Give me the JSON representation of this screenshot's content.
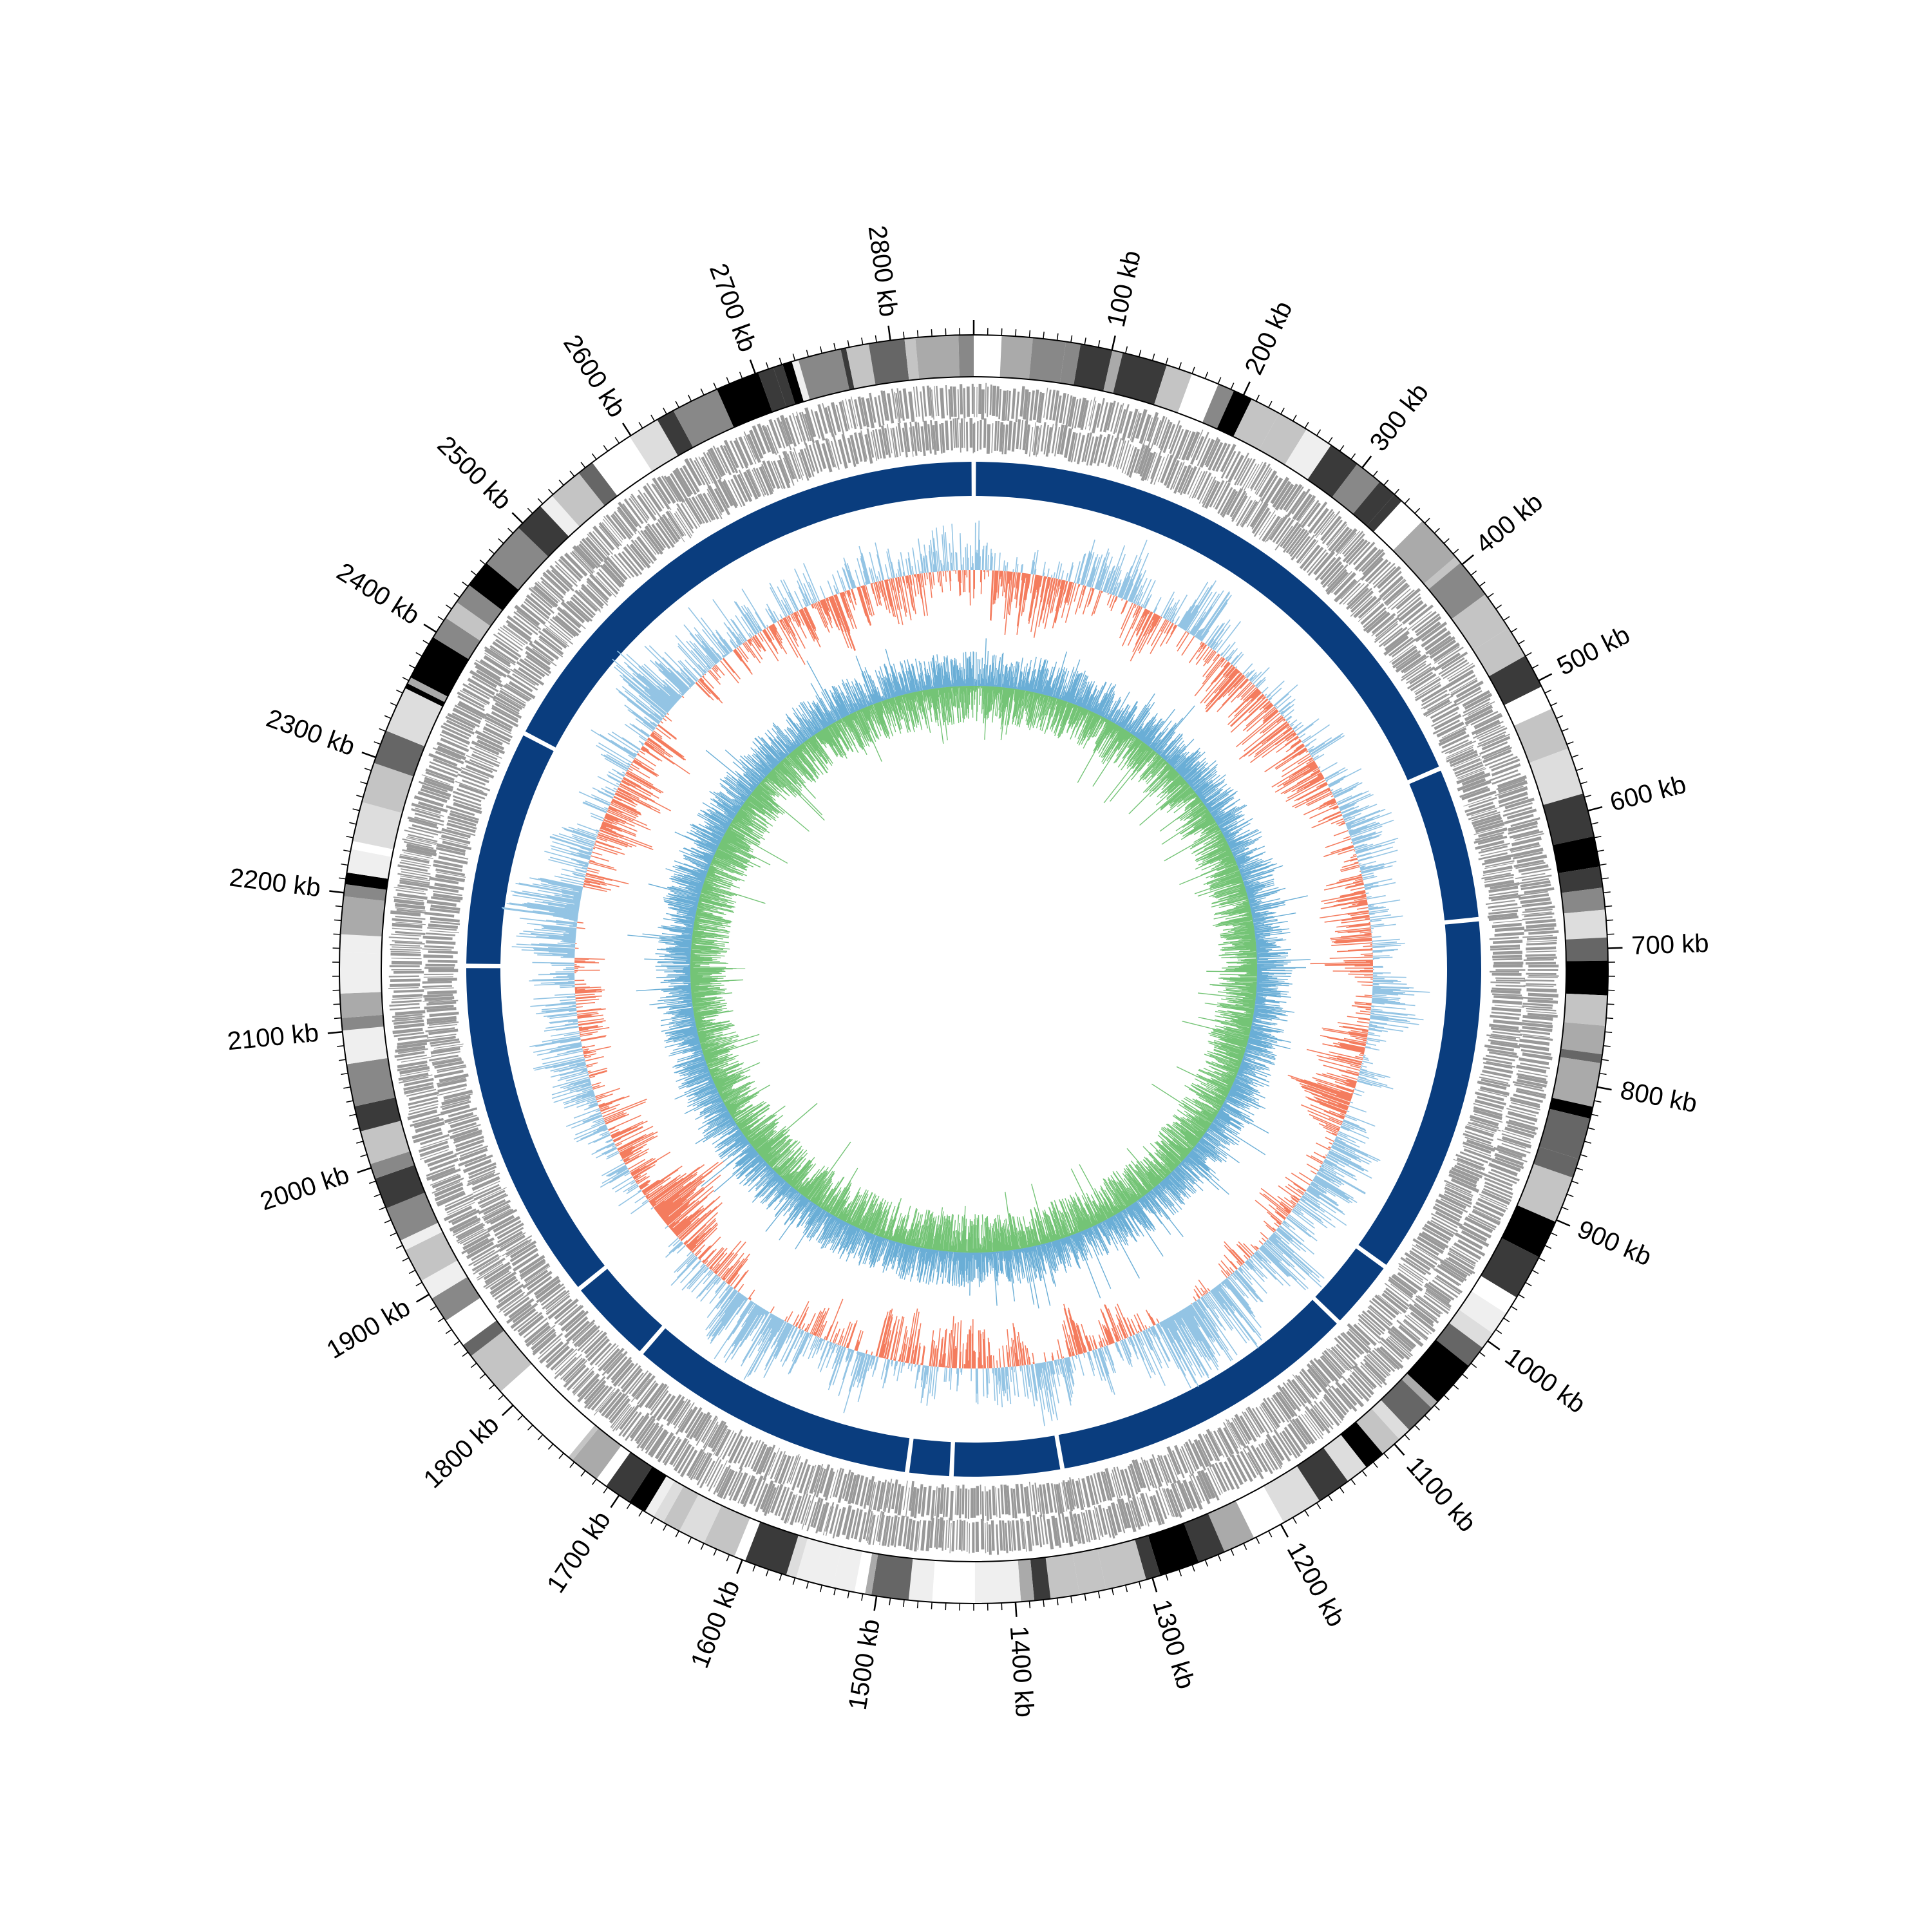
{
  "genome": {
    "length_kb": 2860,
    "start_label": "",
    "tick_labels": [
      "100 kb",
      "200 kb",
      "300 kb",
      "400 kb",
      "500 kb",
      "600 kb",
      "700 kb",
      "800 kb",
      "900 kb",
      "1000 kb",
      "1100 kb",
      "1200 kb",
      "1300 kb",
      "1400 kb",
      "1500 kb",
      "1600 kb",
      "1700 kb",
      "1800 kb",
      "1900 kb",
      "2000 kb",
      "2100 kb",
      "2200 kb",
      "2300 kb",
      "2400 kb",
      "2500 kb",
      "2600 kb",
      "2700 kb",
      "2800 kb"
    ],
    "tick_positions_kb": [
      100,
      200,
      300,
      400,
      500,
      600,
      700,
      800,
      900,
      1000,
      1100,
      1200,
      1300,
      1400,
      1500,
      1600,
      1700,
      1800,
      1900,
      2000,
      2100,
      2200,
      2300,
      2400,
      2500,
      2600,
      2700,
      2800
    ]
  },
  "tracks": [
    {
      "name": "annotation-bands",
      "type": "grayscale-blocks"
    },
    {
      "name": "genes",
      "type": "gene-features",
      "color": "#999999"
    },
    {
      "name": "contigs",
      "type": "segments",
      "color": "#0a3d7e",
      "contigs_kb": [
        [
          0,
          530
        ],
        [
          530,
          670
        ],
        [
          670,
          1000
        ],
        [
          1000,
          1065
        ],
        [
          1065,
          1350
        ],
        [
          1350,
          1450
        ],
        [
          1450,
          1490
        ],
        [
          1490,
          1755
        ],
        [
          1755,
          1835
        ],
        [
          1835,
          2148
        ],
        [
          2148,
          2365
        ],
        [
          2365,
          2860
        ]
      ]
    },
    {
      "name": "gc-content",
      "type": "bar",
      "above_color": "#93c4e4",
      "below_color": "#f47c5e"
    },
    {
      "name": "gc-skew",
      "type": "line",
      "colors": [
        "#6aaed6",
        "#74c476"
      ]
    }
  ],
  "colors": {
    "contig": "#0a3d7e",
    "gc_positive": "#93c4e4",
    "gc_negative": "#f47c5e",
    "skew_blue": "#6aaed6",
    "skew_green": "#74c476",
    "gene_gray": "#999999"
  }
}
